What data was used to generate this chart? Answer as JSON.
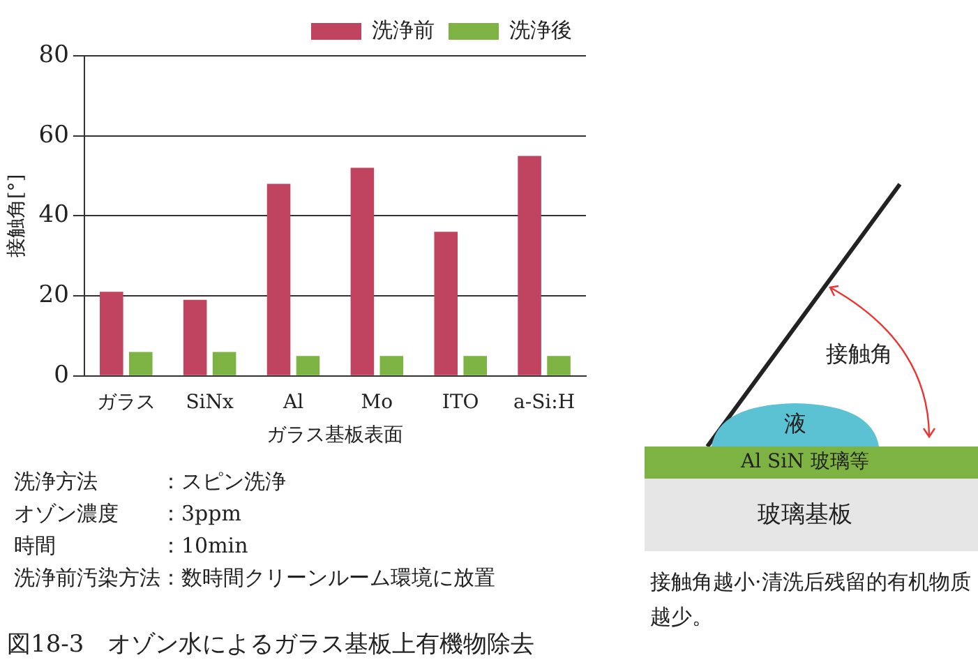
{
  "chart_data": {
    "type": "bar",
    "ylabel": "接触角[°]",
    "xlabel": "ガラス基板表面",
    "categories": [
      "ガラス",
      "SiNx",
      "Al",
      "Mo",
      "ITO",
      "a-Si:H"
    ],
    "series": [
      {
        "name": "洗浄前",
        "color": "#c0435f",
        "values": [
          21,
          19,
          48,
          52,
          36,
          55
        ]
      },
      {
        "name": "洗浄後",
        "color": "#7cb342",
        "values": [
          6,
          6,
          5,
          5,
          5,
          5
        ]
      }
    ],
    "ylim": [
      0,
      80
    ],
    "yticks": [
      0,
      20,
      40,
      60,
      80
    ],
    "grid": "y",
    "legend": "top right",
    "annotations": [
      "洗浄方法：スピン洗浄",
      "オゾン濃度：3ppm",
      "時間：10min",
      "洗浄前汚染方法：数時間クリーンルーム環境に放置",
      "図18-3　オゾン水によるガラス基板上有機物除去",
      "接触角",
      "液",
      "Al SiN 玻璃等",
      "玻璃基板",
      "接触角越小·清洗后残留的有机物质越少。"
    ]
  }
}
